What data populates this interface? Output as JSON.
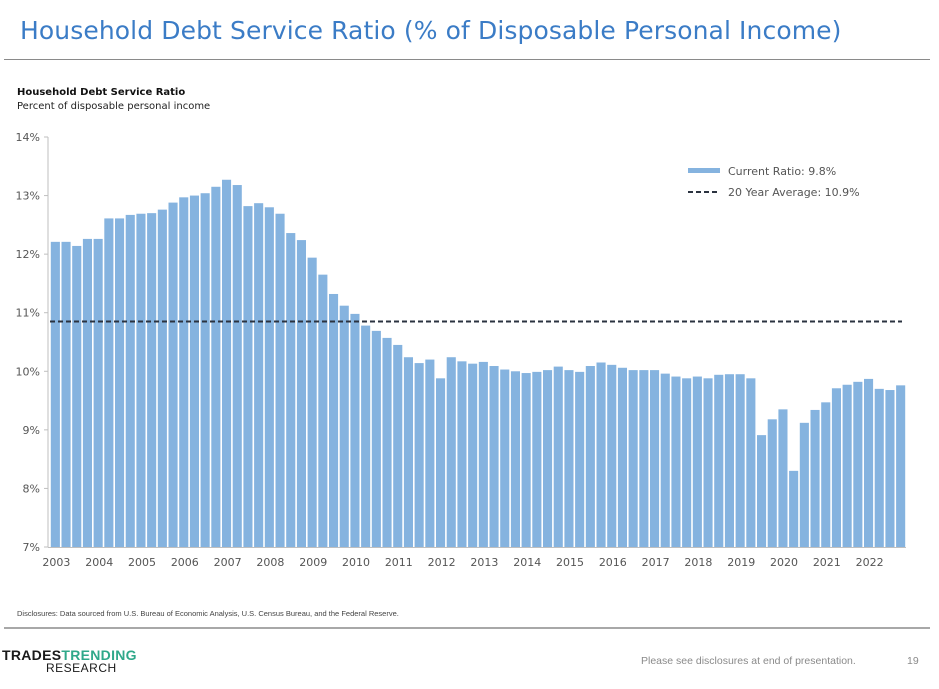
{
  "slide": {
    "title": "Household Debt Service Ratio (% of Disposable Personal Income)",
    "disclosure": "Disclosures: Data sourced from U.S. Bureau of Economic Analysis, U.S. Census Bureau, and the Federal Reserve.",
    "footer_note": "Please see disclosures at end of presentation.",
    "page_number": "19",
    "logo": {
      "word1": "TRADES",
      "word2": "TRENDING",
      "word3": "RESEARCH"
    },
    "colors": {
      "title": "#3b7cc6",
      "bar": "#85b3df",
      "average_line": "#2b3340",
      "logo_accent": "#2fa88a"
    }
  },
  "chart_data": {
    "type": "bar",
    "title": "Household Debt Service Ratio",
    "subtitle": "Percent of disposable personal income",
    "xlabel": "",
    "ylabel": "",
    "ylim": [
      7,
      14
    ],
    "yticks": [
      7,
      8,
      9,
      10,
      11,
      12,
      13,
      14
    ],
    "ytick_labels": [
      "7%",
      "8%",
      "9%",
      "10%",
      "11%",
      "12%",
      "13%",
      "14%"
    ],
    "xtick_labels": [
      "2003",
      "2004",
      "2005",
      "2006",
      "2007",
      "2008",
      "2009",
      "2010",
      "2011",
      "2012",
      "2013",
      "2014",
      "2015",
      "2016",
      "2017",
      "2018",
      "2019",
      "2020",
      "2021",
      "2022"
    ],
    "periods_per_label": 4,
    "grid": false,
    "legend_position": "top-right",
    "series": [
      {
        "name": "Current Ratio: 9.8%",
        "kind": "bar",
        "values": [
          12.21,
          12.21,
          12.14,
          12.26,
          12.26,
          12.61,
          12.61,
          12.67,
          12.69,
          12.7,
          12.76,
          12.88,
          12.97,
          13.0,
          13.04,
          13.15,
          13.27,
          13.18,
          12.82,
          12.87,
          12.8,
          12.69,
          12.36,
          12.24,
          11.94,
          11.65,
          11.32,
          11.12,
          10.98,
          10.78,
          10.69,
          10.57,
          10.45,
          10.24,
          10.14,
          10.2,
          9.88,
          10.24,
          10.17,
          10.13,
          10.16,
          10.09,
          10.03,
          10.0,
          9.97,
          9.99,
          10.02,
          10.08,
          10.02,
          9.99,
          10.09,
          10.15,
          10.11,
          10.06,
          10.02,
          10.02,
          10.02,
          9.96,
          9.91,
          9.88,
          9.91,
          9.88,
          9.94,
          9.95,
          9.95,
          9.88,
          8.91,
          9.18,
          9.35,
          8.3,
          9.12,
          9.34,
          9.47,
          9.71,
          9.77,
          9.82,
          9.87,
          9.7,
          9.68,
          9.76
        ]
      },
      {
        "name": "20 Year Average: 10.9%",
        "kind": "dashed-line",
        "value": 10.85
      }
    ]
  }
}
